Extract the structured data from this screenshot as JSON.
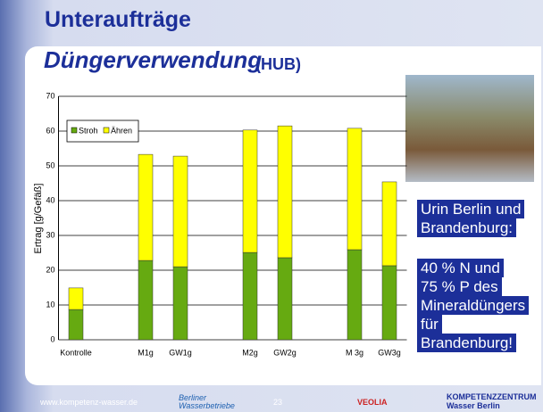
{
  "slide": {
    "title": "Unteraufträge",
    "subtitle": "Düngerverwendung",
    "subtitle_note": "(HUB)",
    "side_text": [
      "Urin Berlin und",
      "Brandenburg:",
      "40 % N und",
      "75 % P des",
      "Mineraldüngers",
      "für",
      "Brandenburg!"
    ],
    "footer": {
      "url": "www.kompetenz-wasser.de",
      "logo1": "Berliner Wasserbetriebe",
      "page": "23",
      "logo2": "VEOLIA",
      "logo3": "KOMPETENZZENTRUM Wasser Berlin"
    }
  },
  "chart_data": {
    "type": "stacked-bar",
    "y_label": "Ertrag [g/Gefäß]",
    "categories": [
      "Kontrolle",
      null,
      "M1g",
      "GW1g",
      null,
      "M2g",
      "GW2g",
      null,
      "M 3g",
      "GW3g"
    ],
    "series": [
      {
        "name": "Stroh",
        "color": "#66aa11",
        "values": [
          8.7,
          null,
          22.8,
          21.0,
          null,
          25.1,
          23.6,
          null,
          25.9,
          21.3
        ]
      },
      {
        "name": "Ähren",
        "color": "#ffff00",
        "values": [
          6.2,
          null,
          30.5,
          31.8,
          null,
          35.2,
          37.9,
          null,
          34.9,
          24.1
        ]
      }
    ],
    "ylim": [
      0,
      70
    ],
    "yticks": [
      0,
      10,
      20,
      30,
      40,
      50,
      60,
      70
    ],
    "grid": true,
    "legend": "top-left"
  }
}
